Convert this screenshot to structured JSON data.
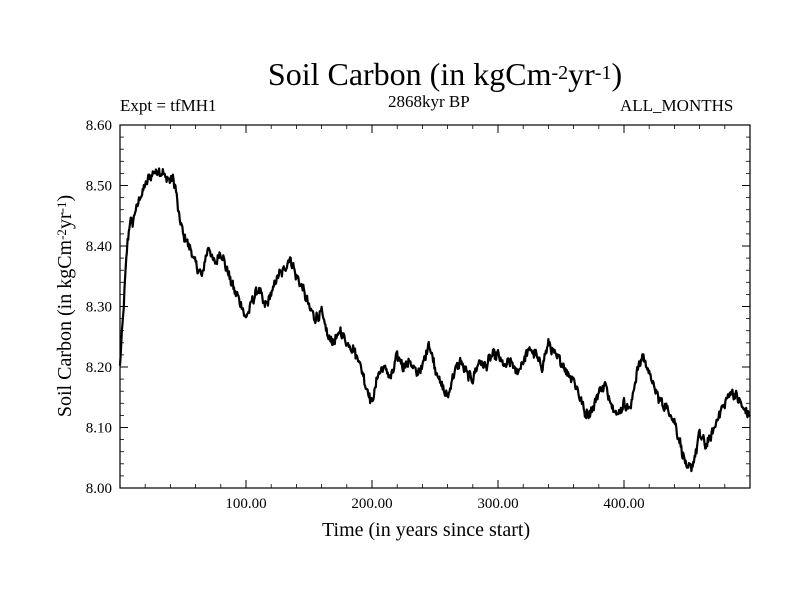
{
  "chart_data": {
    "type": "line",
    "title": "Soil Carbon (in kgCm",
    "title_units": {
      "sup1": "-2",
      "mid": "yr",
      "sup2": "-1",
      "end": ")"
    },
    "subtitle_left": "Expt = tfMH1",
    "subtitle_center": "2868kyr BP",
    "subtitle_right": "ALL_MONTHS",
    "xlabel": "Time (in years since start)",
    "ylabel": "Soil Carbon (in kgCm",
    "xlim": [
      0,
      500
    ],
    "ylim": [
      8.0,
      8.6
    ],
    "xticks": [
      100,
      200,
      300,
      400
    ],
    "xtick_labels": [
      "100.00",
      "200.00",
      "300.00",
      "400.00"
    ],
    "yticks": [
      8.0,
      8.1,
      8.2,
      8.3,
      8.4,
      8.5,
      8.6
    ],
    "ytick_labels": [
      "8.00",
      "8.10",
      "8.20",
      "8.30",
      "8.40",
      "8.50",
      "8.60"
    ],
    "series": [
      {
        "name": "Soil Carbon",
        "color": "#000000",
        "x": [
          0,
          2,
          4,
          6,
          8,
          10,
          14,
          18,
          22,
          26,
          30,
          34,
          38,
          42,
          44,
          46,
          50,
          55,
          60,
          65,
          70,
          75,
          80,
          85,
          90,
          95,
          100,
          105,
          110,
          115,
          120,
          125,
          130,
          135,
          140,
          145,
          150,
          155,
          160,
          165,
          170,
          175,
          180,
          185,
          190,
          195,
          200,
          205,
          210,
          215,
          220,
          225,
          230,
          235,
          240,
          245,
          250,
          255,
          260,
          265,
          270,
          275,
          280,
          285,
          290,
          295,
          300,
          305,
          310,
          315,
          320,
          325,
          330,
          335,
          340,
          345,
          350,
          355,
          360,
          365,
          370,
          375,
          380,
          385,
          390,
          395,
          400,
          405,
          410,
          415,
          420,
          425,
          430,
          435,
          440,
          445,
          450,
          455,
          460,
          465,
          470,
          475,
          480,
          485,
          490,
          495,
          500
        ],
        "values": [
          8.2,
          8.27,
          8.34,
          8.41,
          8.44,
          8.44,
          8.47,
          8.49,
          8.51,
          8.52,
          8.525,
          8.52,
          8.51,
          8.51,
          8.5,
          8.46,
          8.42,
          8.4,
          8.37,
          8.35,
          8.4,
          8.37,
          8.39,
          8.36,
          8.33,
          8.31,
          8.28,
          8.31,
          8.33,
          8.3,
          8.32,
          8.35,
          8.36,
          8.38,
          8.35,
          8.33,
          8.3,
          8.28,
          8.29,
          8.25,
          8.24,
          8.26,
          8.24,
          8.23,
          8.21,
          8.17,
          8.14,
          8.19,
          8.2,
          8.18,
          8.22,
          8.2,
          8.21,
          8.19,
          8.2,
          8.24,
          8.2,
          8.17,
          8.15,
          8.19,
          8.21,
          8.19,
          8.18,
          8.21,
          8.2,
          8.22,
          8.22,
          8.2,
          8.21,
          8.19,
          8.21,
          8.23,
          8.22,
          8.2,
          8.24,
          8.22,
          8.21,
          8.19,
          8.18,
          8.15,
          8.12,
          8.13,
          8.16,
          8.17,
          8.14,
          8.12,
          8.14,
          8.13,
          8.19,
          8.22,
          8.19,
          8.16,
          8.14,
          8.13,
          8.11,
          8.07,
          8.03,
          8.04,
          8.09,
          8.07,
          8.09,
          8.12,
          8.14,
          8.16,
          8.15,
          8.13,
          8.12
        ]
      }
    ]
  }
}
